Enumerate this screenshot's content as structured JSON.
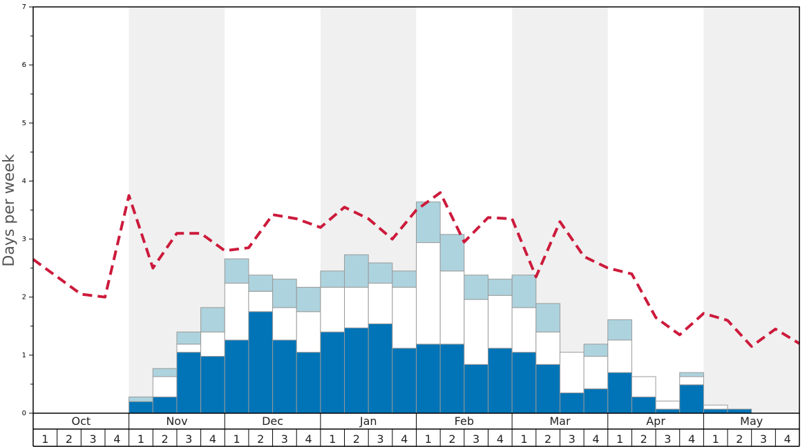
{
  "chart_data": {
    "type": "bar",
    "ylabel": "Days per week",
    "ylim": [
      0,
      7
    ],
    "y_ticks": [
      "0",
      "1",
      "2",
      "3",
      "4",
      "5",
      "6",
      "7"
    ],
    "months": [
      "Oct",
      "Nov",
      "Dec",
      "Jan",
      "Feb",
      "Mar",
      "Apr",
      "May"
    ],
    "weeks_per_month": [
      "1",
      "2",
      "3",
      "4"
    ],
    "colors": {
      "dark_series": "#0174b7",
      "white_series": "#ffffff",
      "light_series": "#add3de",
      "bar_border": "#999999",
      "line": "#cc1a3b",
      "shade": "#f0f0f0"
    },
    "series": [
      {
        "values": [
          0,
          0,
          0,
          0,
          0.2,
          0.28,
          1.05,
          0.98,
          1.26,
          1.75,
          1.26,
          1.05,
          1.4,
          1.47,
          1.54,
          1.12,
          1.19,
          1.19,
          0.84,
          1.12,
          1.05,
          0.84,
          0.35,
          0.42,
          0.7,
          0.28,
          0.07,
          0.49,
          0.07,
          0.07,
          0,
          0
        ]
      },
      {
        "values": [
          0,
          0,
          0,
          0,
          0,
          0.35,
          0.14,
          0.42,
          0.98,
          0.35,
          0.56,
          0.7,
          0.77,
          0.7,
          0.7,
          1.05,
          1.75,
          1.26,
          1.12,
          0.91,
          0.77,
          0.56,
          0.7,
          0.56,
          0.56,
          0.35,
          0.14,
          0.14,
          0.07,
          0,
          0,
          0
        ]
      },
      {
        "values": [
          0,
          0,
          0,
          0,
          0.08,
          0.14,
          0.21,
          0.42,
          0.42,
          0.28,
          0.49,
          0.42,
          0.28,
          0.56,
          0.35,
          0.28,
          0.7,
          0.63,
          0.42,
          0.28,
          0.56,
          0.49,
          0,
          0.21,
          0.35,
          0,
          0,
          0.07,
          0,
          0,
          0,
          0
        ]
      }
    ],
    "line": {
      "style": "dashed",
      "values": [
        2.65,
        2.35,
        2.05,
        2.0,
        3.75,
        2.5,
        3.1,
        3.1,
        2.8,
        2.85,
        3.42,
        3.35,
        3.2,
        3.55,
        3.35,
        3.0,
        3.5,
        3.8,
        2.95,
        3.37,
        3.35,
        2.35,
        3.3,
        2.7,
        2.5,
        2.4,
        1.65,
        1.35,
        1.72,
        1.6,
        1.15,
        1.45,
        1.2
      ]
    }
  }
}
